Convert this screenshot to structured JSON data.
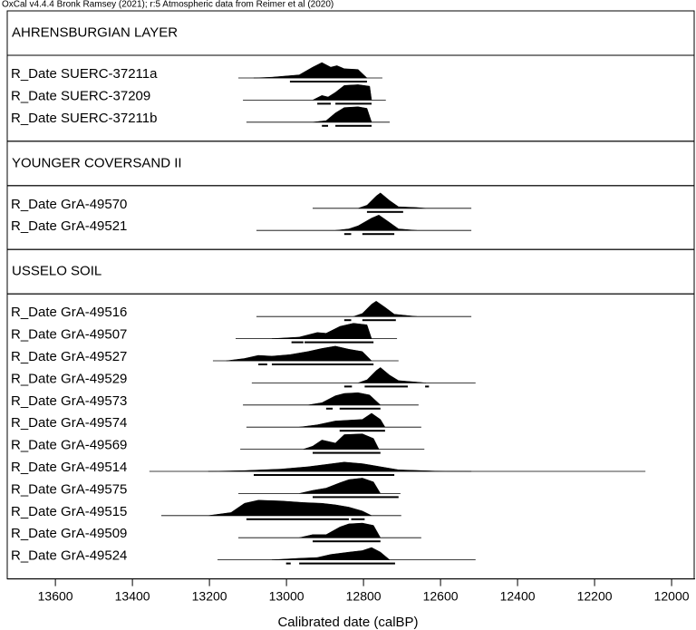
{
  "chart_data": {
    "type": "multiplot",
    "title": "OxCal v4.4.4 Bronk Ramsey (2021); r:5 Atmospheric data from Reimer et al (2020)",
    "xlabel": "Calibrated date (calBP)",
    "xlim": [
      13725,
      11939
    ],
    "xticks": [
      13600,
      13400,
      13200,
      13000,
      12800,
      12600,
      12400,
      12200,
      12000
    ],
    "color": "#000000",
    "groups": [
      {
        "name": "AHRENSBURGIAN LAYER",
        "dates": [
          {
            "name": "R_Date SUERC-37211a",
            "range": [
              13125,
              12751
            ],
            "hpd": [
              [
                12991,
                12791
              ]
            ],
            "curve": {
              "x": [
                13085,
                13038,
                12967,
                12932,
                12908,
                12885,
                12869,
                12850,
                12814,
                12791
              ],
              "y": [
                0,
                0.05,
                0.2,
                0.7,
                1,
                0.7,
                0.8,
                0.6,
                0.55,
                0
              ]
            }
          },
          {
            "name": "R_Date SUERC-37209",
            "range": [
              13113,
              12742
            ],
            "hpd": [
              [
                12920,
                12885
              ],
              [
                12873,
                12779
              ]
            ],
            "curve": {
              "x": [
                12932,
                12908,
                12892,
                12873,
                12850,
                12814,
                12784,
                12779
              ],
              "y": [
                0,
                0.3,
                0.2,
                0.5,
                0.95,
                1,
                0.9,
                0
              ]
            }
          },
          {
            "name": "R_Date SUERC-37211b",
            "range": [
              13104,
              12732
            ],
            "hpd": [
              [
                12908,
                12892
              ],
              [
                12873,
                12779
              ]
            ],
            "curve": {
              "x": [
                12932,
                12897,
                12873,
                12850,
                12814,
                12791,
                12779
              ],
              "y": [
                0,
                0.1,
                0.6,
                0.95,
                1,
                0.9,
                0
              ]
            }
          }
        ]
      },
      {
        "name": "YOUNGER COVERSAND II",
        "dates": [
          {
            "name": "R_Date GrA-49570",
            "range": [
              12932,
              12520
            ],
            "hpd": [
              [
                12791,
                12697
              ]
            ],
            "curve": {
              "x": [
                12814,
                12791,
                12767,
                12756,
                12732,
                12709,
                12661,
                12638
              ],
              "y": [
                0,
                0.2,
                0.8,
                1,
                0.5,
                0.1,
                0.05,
                0
              ]
            }
          },
          {
            "name": "R_Date GrA-49521",
            "range": [
              13078,
              12520
            ],
            "hpd": [
              [
                12850,
                12832
              ],
              [
                12803,
                12720
              ]
            ],
            "curve": {
              "x": [
                12873,
                12838,
                12814,
                12779,
                12760,
                12737,
                12709,
                12661
              ],
              "y": [
                0,
                0.1,
                0.3,
                0.8,
                1,
                0.6,
                0.1,
                0
              ]
            }
          }
        ]
      },
      {
        "name": "USSELO SOIL",
        "dates": [
          {
            "name": "R_Date GrA-49516",
            "range": [
              13078,
              12520
            ],
            "hpd": [
              [
                12850,
                12832
              ],
              [
                12803,
                12716
              ]
            ],
            "curve": {
              "x": [
                12826,
                12803,
                12779,
                12767,
                12744,
                12720,
                12661
              ],
              "y": [
                0,
                0.2,
                0.8,
                1,
                0.6,
                0.15,
                0
              ]
            }
          },
          {
            "name": "R_Date GrA-49507",
            "range": [
              13132,
              12713
            ],
            "hpd": [
              [
                12987,
                12956
              ],
              [
                12953,
                12774
              ]
            ],
            "curve": {
              "x": [
                13038,
                12967,
                12920,
                12897,
                12861,
                12826,
                12791,
                12779
              ],
              "y": [
                0,
                0.1,
                0.4,
                0.35,
                0.8,
                1,
                0.9,
                0
              ]
            }
          },
          {
            "name": "R_Date GrA-49527",
            "range": [
              13191,
              12709
            ],
            "hpd": [
              [
                13073,
                13050
              ],
              [
                13038,
                12774
              ]
            ],
            "curve": {
              "x": [
                13156,
                13109,
                13073,
                13038,
                12991,
                12944,
                12908,
                12873,
                12838,
                12803,
                12779
              ],
              "y": [
                0,
                0.15,
                0.35,
                0.3,
                0.4,
                0.6,
                0.8,
                0.95,
                0.75,
                0.6,
                0
              ]
            }
          },
          {
            "name": "R_Date GrA-49529",
            "range": [
              13090,
              12509
            ],
            "hpd": [
              [
                12850,
                12830
              ],
              [
                12797,
                12685
              ],
              [
                12640,
                12630
              ]
            ],
            "curve": {
              "x": [
                12814,
                12791,
                12767,
                12756,
                12732,
                12709,
                12661,
                12638
              ],
              "y": [
                0,
                0.2,
                0.8,
                1,
                0.5,
                0.15,
                0.05,
                0
              ]
            }
          },
          {
            "name": "R_Date GrA-49573",
            "range": [
              13113,
              12657
            ],
            "hpd": [
              [
                12897,
                12880
              ],
              [
                12862,
                12756
              ]
            ],
            "curve": {
              "x": [
                12944,
                12908,
                12873,
                12850,
                12814,
                12784,
                12756
              ],
              "y": [
                0,
                0.15,
                0.6,
                0.75,
                0.8,
                0.65,
                0
              ]
            }
          },
          {
            "name": "R_Date GrA-49574",
            "range": [
              13104,
              12650
            ],
            "hpd": [
              [
                12862,
                12744
              ]
            ],
            "curve": {
              "x": [
                12967,
                12920,
                12873,
                12838,
                12803,
                12779,
                12756,
                12744
              ],
              "y": [
                0,
                0.15,
                0.4,
                0.45,
                0.5,
                0.9,
                0.5,
                0
              ]
            }
          },
          {
            "name": "R_Date GrA-49569",
            "range": [
              13120,
              12642
            ],
            "hpd": [
              [
                12932,
                12756
              ]
            ],
            "curve": {
              "x": [
                12956,
                12932,
                12908,
                12873,
                12850,
                12803,
                12774,
                12760
              ],
              "y": [
                0,
                0.2,
                0.6,
                0.4,
                0.95,
                1,
                0.7,
                0
              ]
            }
          },
          {
            "name": "R_Date GrA-49514",
            "range": [
              13356,
              12068
            ],
            "hpd": [
              [
                13085,
                12720
              ]
            ],
            "curve": {
              "x": [
                13203,
                13109,
                13014,
                12944,
                12897,
                12850,
                12803,
                12779,
                12756,
                12709,
                12614,
                12520
              ],
              "y": [
                0,
                0.05,
                0.15,
                0.3,
                0.45,
                0.6,
                0.5,
                0.4,
                0.3,
                0.1,
                0.02,
                0
              ]
            }
          },
          {
            "name": "R_Date GrA-49575",
            "range": [
              13125,
              12704
            ],
            "hpd": [
              [
                12932,
                12709
              ]
            ],
            "curve": {
              "x": [
                12967,
                12932,
                12897,
                12861,
                12838,
                12803,
                12774,
                12756
              ],
              "y": [
                0,
                0.2,
                0.35,
                0.7,
                0.9,
                1,
                0.75,
                0
              ]
            }
          },
          {
            "name": "R_Date GrA-49515",
            "range": [
              13325,
              12702
            ],
            "hpd": [
              [
                13104,
                12838
              ],
              [
                12832,
                12797
              ]
            ],
            "curve": {
              "x": [
                13203,
                13144,
                13109,
                13073,
                13014,
                12956,
                12908,
                12873,
                12838,
                12803,
                12779
              ],
              "y": [
                0,
                0.2,
                0.8,
                1,
                0.95,
                0.85,
                0.8,
                0.7,
                0.55,
                0.3,
                0
              ]
            }
          },
          {
            "name": "R_Date GrA-49509",
            "range": [
              13125,
              12650
            ],
            "hpd": [
              [
                12932,
                12756
              ]
            ],
            "curve": {
              "x": [
                12967,
                12932,
                12897,
                12861,
                12838,
                12803,
                12774,
                12756
              ],
              "y": [
                0,
                0.2,
                0.2,
                0.7,
                0.9,
                0.95,
                0.8,
                0
              ]
            }
          },
          {
            "name": "R_Date GrA-49524",
            "range": [
              13179,
              12509
            ],
            "hpd": [
              [
                13001,
                12989
              ],
              [
                12967,
                12718
              ]
            ],
            "curve": {
              "x": [
                13038,
                12967,
                12920,
                12885,
                12838,
                12803,
                12779,
                12756,
                12732
              ],
              "y": [
                0,
                0.1,
                0.15,
                0.35,
                0.5,
                0.6,
                0.8,
                0.5,
                0
              ]
            }
          }
        ]
      }
    ]
  }
}
